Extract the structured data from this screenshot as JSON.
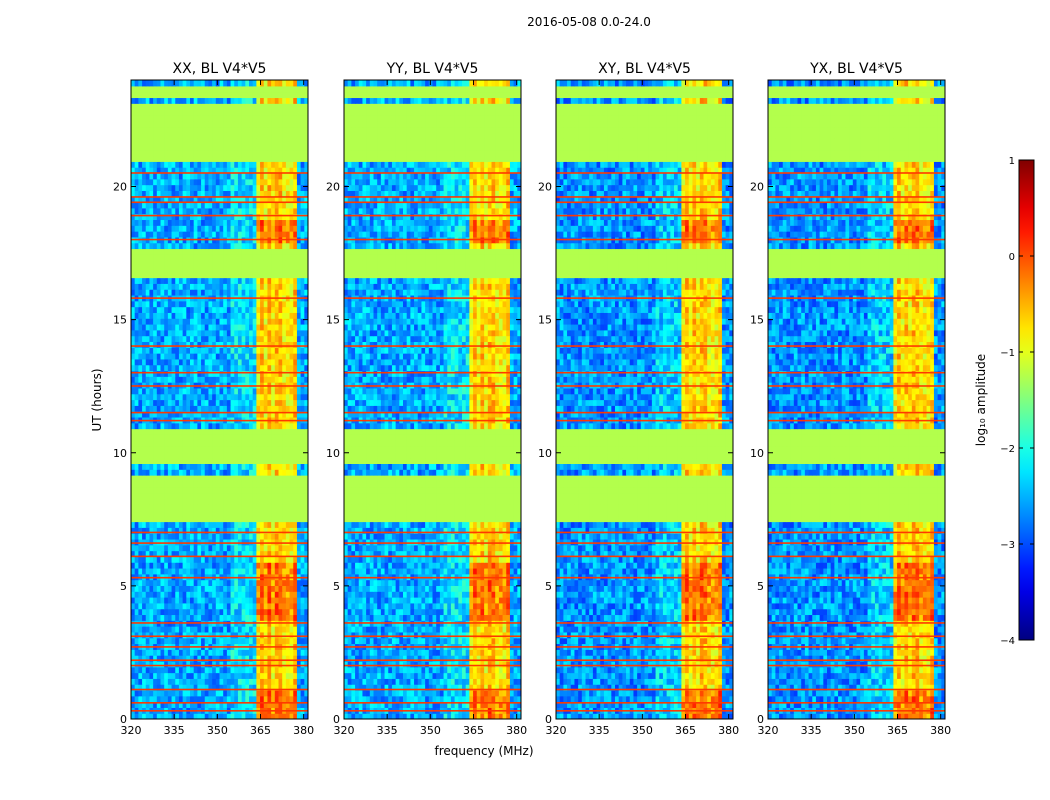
{
  "chart_data": {
    "type": "heatmap",
    "suptitle": "2016-05-08 0.0-24.0",
    "xlabel": "frequency (MHz)",
    "ylabel": "UT (hours)",
    "xlim": [
      320,
      381.5
    ],
    "ylim": [
      0,
      24
    ],
    "xticks": [
      320,
      335,
      350,
      365,
      380
    ],
    "yticks": [
      0,
      5,
      10,
      15,
      20
    ],
    "panels": [
      {
        "title": "XX, BL V4*V5",
        "show_yticks": true
      },
      {
        "title": "YY, BL V4*V5",
        "show_yticks": true
      },
      {
        "title": "XY, BL V4*V5",
        "show_yticks": true
      },
      {
        "title": "YX, BL V4*V5",
        "show_yticks": true
      }
    ],
    "flagged_time_blocks_hours": [
      [
        16.5,
        17.7
      ],
      [
        20.9,
        21.5
      ],
      [
        21.7,
        23.2
      ],
      [
        23.4,
        23.7
      ],
      [
        9.6,
        11.0
      ],
      [
        7.4,
        9.2
      ]
    ],
    "strong_freq_band_MHz": [
      364,
      378
    ],
    "strong_band_edges_MHz": [
      364,
      366.5,
      369,
      373.5,
      375,
      378
    ],
    "colorbar": {
      "label": "log₁₀ amplitude",
      "min": -4,
      "max": 1,
      "ticks": [
        1,
        0,
        -1,
        -2,
        -3,
        -4
      ],
      "tick_labels": [
        "1",
        "0",
        "−1",
        "−2",
        "−3",
        "−4"
      ],
      "colormap": "jet"
    }
  }
}
